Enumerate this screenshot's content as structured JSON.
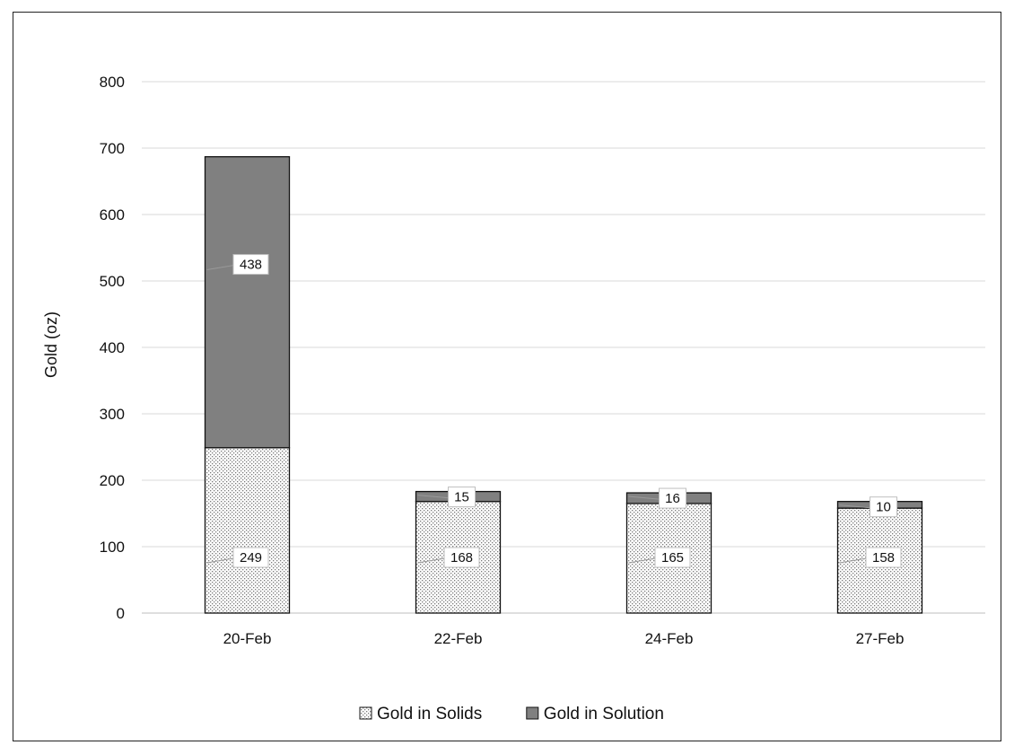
{
  "chart_data": {
    "type": "bar",
    "stacked": true,
    "categories": [
      "20-Feb",
      "22-Feb",
      "24-Feb",
      "27-Feb"
    ],
    "series": [
      {
        "name": "Gold in Solids",
        "values": [
          249,
          168,
          165,
          158
        ],
        "color": "#ffffff",
        "pattern": "dotted"
      },
      {
        "name": "Gold in Solution",
        "values": [
          438,
          15,
          16,
          10
        ],
        "color": "#808080",
        "pattern": "solid"
      }
    ],
    "title": "",
    "xlabel": "",
    "ylabel": "Gold (oz)",
    "ylim": [
      0,
      800
    ],
    "yticks": [
      0,
      100,
      200,
      300,
      400,
      500,
      600,
      700,
      800
    ],
    "grid": true,
    "legend_position": "bottom"
  }
}
